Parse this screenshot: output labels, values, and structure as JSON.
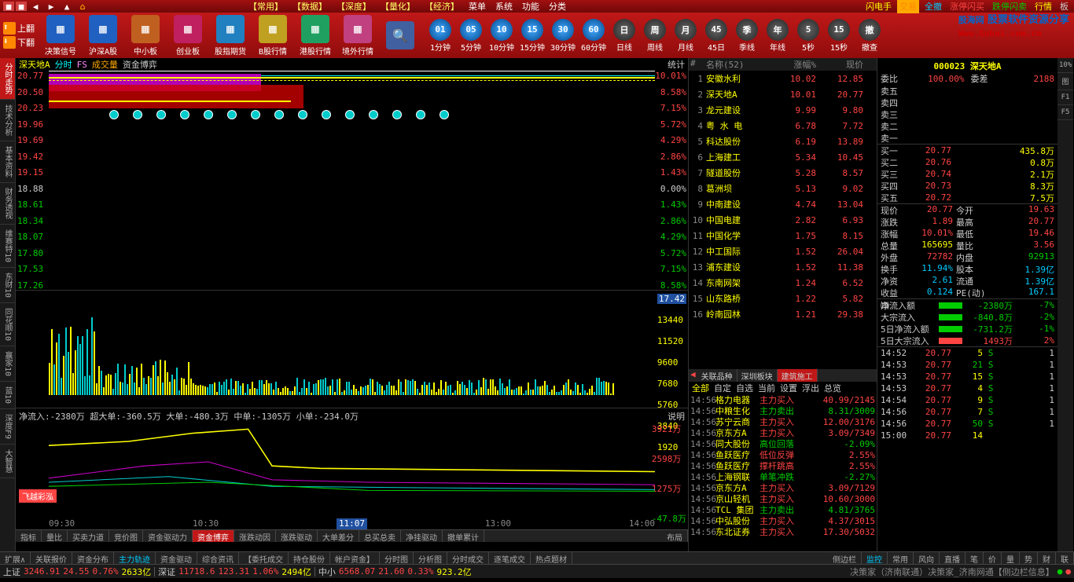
{
  "watermark": {
    "cn": "股海网",
    "sub": "股票软件资源分享",
    "url": "Www.Guhai.com.cn"
  },
  "topbar": {
    "menu": [
      "【常用】",
      "【数据】",
      "【深度】",
      "【量化】",
      "【经济】",
      "菜单",
      "系统",
      "功能",
      "分类"
    ],
    "right": [
      "闪电手",
      "交易",
      "全撤",
      "涨停闪买",
      "跌停闪卖",
      "行情",
      "板"
    ]
  },
  "leftScroll": {
    "up": "上翻",
    "down": "下翻"
  },
  "tools": [
    {
      "label": "决策信号",
      "c": "#2060c0"
    },
    {
      "label": "沪深A股",
      "c": "#2060c0"
    },
    {
      "label": "中小板",
      "c": "#c06020"
    },
    {
      "label": "创业板",
      "c": "#c02060"
    },
    {
      "label": "股指期货",
      "c": "#2080c0"
    },
    {
      "label": "B股行情",
      "c": "#c0a020"
    },
    {
      "label": "港股行情",
      "c": "#20a060"
    },
    {
      "label": "境外行情",
      "c": "#c04080"
    }
  ],
  "search": {
    "c": "#4060a0"
  },
  "timeframes": [
    {
      "t": "01",
      "l": "1分钟"
    },
    {
      "t": "05",
      "l": "5分钟"
    },
    {
      "t": "10",
      "l": "10分钟"
    },
    {
      "t": "15",
      "l": "15分钟"
    },
    {
      "t": "30",
      "l": "30分钟"
    },
    {
      "t": "60",
      "l": "60分钟"
    },
    {
      "t": "日",
      "l": "日线",
      "d": 1
    },
    {
      "t": "周",
      "l": "周线",
      "d": 1
    },
    {
      "t": "月",
      "l": "月线",
      "d": 1
    },
    {
      "t": "45",
      "l": "45日",
      "d": 1
    },
    {
      "t": "季",
      "l": "季线",
      "d": 1
    },
    {
      "t": "年",
      "l": "年线",
      "d": 1
    },
    {
      "t": "5",
      "l": "5秒",
      "d": 1
    },
    {
      "t": "15",
      "l": "15秒",
      "d": 1
    },
    {
      "t": "撤",
      "l": "撤查",
      "d": 1
    }
  ],
  "leftTabs": [
    "分时走势",
    "技术分析",
    "基本资料",
    "财务透视",
    "维赛特10",
    "东财10",
    "同花顺10",
    "赢家10",
    "蓝10",
    "深度F9",
    "大智慧"
  ],
  "chartHeader": {
    "code": "深天地A",
    "tf": "分时",
    "fs": "FS",
    "voltxt": "成交量",
    "flowtxt": "资金博弈",
    "stat": "统计"
  },
  "priceAxis": {
    "left": [
      "20.77",
      "20.50",
      "20.23",
      "19.96",
      "19.69",
      "19.42",
      "19.15",
      "18.88",
      "18.61",
      "18.34",
      "18.07",
      "17.80",
      "17.53",
      "17.26"
    ],
    "leftColors": [
      "#f44",
      "#f44",
      "#f44",
      "#f44",
      "#f44",
      "#f44",
      "#f44",
      "#ccc",
      "#0c0",
      "#0c0",
      "#0c0",
      "#0c0",
      "#0c0",
      "#0c0"
    ],
    "right": [
      "10.01%",
      "8.58%",
      "7.15%",
      "5.72%",
      "4.29%",
      "2.86%",
      "1.43%",
      "0.00%",
      "1.43%",
      "2.86%",
      "4.29%",
      "5.72%",
      "7.15%",
      "8.58%"
    ],
    "rightColors": [
      "#f44",
      "#f44",
      "#f44",
      "#f44",
      "#f44",
      "#f44",
      "#f44",
      "#ccc",
      "#0c0",
      "#0c0",
      "#0c0",
      "#0c0",
      "#0c0",
      "#0c0"
    ]
  },
  "volAxis": [
    "17.42",
    "13440",
    "11520",
    "9600",
    "7680",
    "5760",
    "3840",
    "1920"
  ],
  "volColors": [
    "#fff",
    "#ff0",
    "#ff0",
    "#ff0",
    "#ff0",
    "#ff0",
    "#ff0",
    "#ff0"
  ],
  "flowHdr": "净流入:-2380万 超大单:-360.5万  大单:-480.3万 中单:-1305万  小单:-234.0万",
  "flowHdrR": "说明",
  "flowAxis": [
    "3921万",
    "2598万",
    "1275万",
    "-47.8万"
  ],
  "flowColors": [
    "#f44",
    "#f44",
    "#f44",
    "#0c0"
  ],
  "xaxis": [
    "09:30",
    "10:30",
    "11:07",
    "13:00",
    "14:00"
  ],
  "chartTabs": [
    "指标",
    "量比",
    "买卖力道",
    "竞价图",
    "资金驱动力",
    "资金博弈",
    "涨跌动因",
    "涨跌驱动",
    "大单差分",
    "总买总卖",
    "净挂驱动",
    "撤单累计"
  ],
  "chartTabR": "布局",
  "chartTabAc": 5,
  "midHeader": {
    "id": "#",
    "name": "名称(52)",
    "chg": "涨幅%",
    "price": "现价"
  },
  "stocks": [
    {
      "n": "安徽水利",
      "c": "10.02",
      "p": "12.85"
    },
    {
      "n": "深天地A",
      "c": "10.01",
      "p": "20.77",
      "hl": 0
    },
    {
      "n": "龙元建设",
      "c": "9.99",
      "p": "9.80"
    },
    {
      "n": "粤 水 电",
      "c": "6.78",
      "p": "7.72"
    },
    {
      "n": "科达股份",
      "c": "6.19",
      "p": "13.89"
    },
    {
      "n": "上海建工",
      "c": "5.34",
      "p": "10.45"
    },
    {
      "n": "隧道股份",
      "c": "5.28",
      "p": "8.57"
    },
    {
      "n": "葛洲坝",
      "c": "5.13",
      "p": "9.02"
    },
    {
      "n": "中南建设",
      "c": "4.74",
      "p": "13.04"
    },
    {
      "n": "中国电建",
      "c": "2.82",
      "p": "6.93"
    },
    {
      "n": "中国化学",
      "c": "1.75",
      "p": "8.15"
    },
    {
      "n": "中工国际",
      "c": "1.52",
      "p": "26.04"
    },
    {
      "n": "浦东建设",
      "c": "1.52",
      "p": "11.38"
    },
    {
      "n": "东南网架",
      "c": "1.24",
      "p": "6.52"
    },
    {
      "n": "山东路桥",
      "c": "1.22",
      "p": "5.82"
    },
    {
      "n": "岭南园林",
      "c": "1.21",
      "p": "29.38"
    }
  ],
  "relTabs": [
    "关联品种",
    "深圳板块",
    "建筑施工"
  ],
  "relTabAc": 2,
  "filterTabs": [
    "全部",
    "自定",
    "自选",
    "当前",
    "设置",
    "浮出",
    "总览"
  ],
  "trades": [
    {
      "t": "14:56",
      "n": "格力电器",
      "a": "主力买入",
      "v": "40.99/2145",
      "ca": "#f44",
      "cv": "#f44"
    },
    {
      "t": "14:56",
      "n": "中粮生化",
      "a": "主力卖出",
      "v": "8.31/3009",
      "ca": "#0c0",
      "cv": "#0c0"
    },
    {
      "t": "14:56",
      "n": "苏宁云商",
      "a": "主力买入",
      "v": "12.00/3176",
      "ca": "#f44",
      "cv": "#f44"
    },
    {
      "t": "14:56",
      "n": "京东方A",
      "a": "主力买入",
      "v": "3.09/7349",
      "ca": "#f44",
      "cv": "#f44"
    },
    {
      "t": "14:56",
      "n": "同大股份",
      "a": "高位回落",
      "v": "-2.09%",
      "ca": "#0c0",
      "cv": "#0c0"
    },
    {
      "t": "14:56",
      "n": "鱼跃医疗",
      "a": "低位反弹",
      "v": "2.55%",
      "ca": "#f44",
      "cv": "#f44"
    },
    {
      "t": "14:56",
      "n": "鱼跃医疗",
      "a": "撑杆跳高",
      "v": "2.55%",
      "ca": "#f44",
      "cv": "#f44"
    },
    {
      "t": "14:56",
      "n": "上海钢联",
      "a": "单笔冲跌",
      "v": "-2.27%",
      "ca": "#0c0",
      "cv": "#0c0"
    },
    {
      "t": "14:56",
      "n": "京东方A",
      "a": "主力买入",
      "v": "3.09/7129",
      "ca": "#f44",
      "cv": "#f44"
    },
    {
      "t": "14:56",
      "n": "京山轻机",
      "a": "主力买入",
      "v": "10.60/3000",
      "ca": "#f44",
      "cv": "#f44"
    },
    {
      "t": "14:56",
      "n": "TCL 集团",
      "a": "主力卖出",
      "v": "4.81/3765",
      "ca": "#0c0",
      "cv": "#0c0"
    },
    {
      "t": "14:56",
      "n": "中弘股份",
      "a": "主力买入",
      "v": "4.37/3015",
      "ca": "#f44",
      "cv": "#f44"
    },
    {
      "t": "14:56",
      "n": "东北证券",
      "a": "主力买入",
      "v": "17.30/5032",
      "ca": "#f44",
      "cv": "#f44"
    }
  ],
  "stockTitle": {
    "code": "000023",
    "name": "深天地A"
  },
  "ratio": {
    "l1": "委比",
    "v1": "100.00%",
    "l2": "委差",
    "v2": "2188",
    "c1": "#f44",
    "c2": "#f44"
  },
  "sells": [
    "卖五",
    "卖四",
    "卖三",
    "卖二",
    "卖一"
  ],
  "buys": [
    {
      "l": "买一",
      "p": "20.77",
      "v": "435.8万"
    },
    {
      "l": "买二",
      "p": "20.76",
      "v": "0.8万"
    },
    {
      "l": "买三",
      "p": "20.74",
      "v": "2.1万"
    },
    {
      "l": "买四",
      "p": "20.73",
      "v": "8.3万"
    },
    {
      "l": "买五",
      "p": "20.72",
      "v": "7.5万"
    }
  ],
  "info": [
    {
      "l1": "现价",
      "v1": "20.77",
      "c1": "#f44",
      "l2": "今开",
      "v2": "19.63",
      "c2": "#f44"
    },
    {
      "l1": "涨跌",
      "v1": "1.89",
      "c1": "#f44",
      "l2": "最高",
      "v2": "20.77",
      "c2": "#f44"
    },
    {
      "l1": "涨幅",
      "v1": "10.01%",
      "c1": "#f44",
      "l2": "最低",
      "v2": "19.46",
      "c2": "#f44"
    },
    {
      "l1": "总量",
      "v1": "165695",
      "c1": "#ff0",
      "l2": "量比",
      "v2": "3.56",
      "c2": "#f44"
    },
    {
      "l1": "外盘",
      "v1": "72782",
      "c1": "#f44",
      "l2": "内盘",
      "v2": "92913",
      "c2": "#0c0"
    },
    {
      "l1": "换手",
      "v1": "11.94%",
      "c1": "#0cf",
      "l2": "股本",
      "v2": "1.39亿",
      "c2": "#0cf"
    },
    {
      "l1": "净资",
      "v1": "2.61",
      "c1": "#0cf",
      "l2": "流通",
      "v2": "1.39亿",
      "c2": "#0cf"
    },
    {
      "l1": "收益㈣",
      "v1": "0.124",
      "c1": "#0cf",
      "l2": "PE(动)",
      "v2": "167.1",
      "c2": "#0cf"
    }
  ],
  "flowInfo": [
    {
      "l": "净流入额",
      "bc": "#0c0",
      "v": "-2380万",
      "p": "-7%",
      "vc": "#0c0",
      "pc": "#0c0"
    },
    {
      "l": "大宗流入",
      "bc": "#0c0",
      "v": "-840.8万",
      "p": "-2%",
      "vc": "#0c0",
      "pc": "#0c0"
    },
    {
      "l": "5日净流入额",
      "bc": "#0c0",
      "v": "-731.2万",
      "p": "-1%",
      "vc": "#0c0",
      "pc": "#0c0"
    },
    {
      "l": "5日大宗流入",
      "bc": "#f44",
      "v": "1493万",
      "p": "2%",
      "vc": "#f44",
      "pc": "#f44"
    }
  ],
  "ticks": [
    {
      "t": "14:52",
      "p": "20.77",
      "v": "5",
      "s": "S",
      "n": "1",
      "sc": "#0c0"
    },
    {
      "t": "14:53",
      "p": "20.77",
      "v": "21",
      "s": "S",
      "n": "1",
      "sc": "#0c0",
      "vc": "#0c0"
    },
    {
      "t": "14:53",
      "p": "20.77",
      "v": "15",
      "s": "S",
      "n": "1",
      "sc": "#0c0"
    },
    {
      "t": "14:53",
      "p": "20.77",
      "v": "4",
      "s": "S",
      "n": "1",
      "sc": "#0c0"
    },
    {
      "t": "14:54",
      "p": "20.77",
      "v": "9",
      "s": "S",
      "n": "1",
      "sc": "#0c0"
    },
    {
      "t": "14:56",
      "p": "20.77",
      "v": "7",
      "s": "S",
      "n": "1",
      "sc": "#0c0"
    },
    {
      "t": "14:56",
      "p": "20.77",
      "v": "50",
      "s": "S",
      "n": "1",
      "sc": "#0c0",
      "vc": "#0c0"
    },
    {
      "t": "15:00",
      "p": "20.77",
      "v": "14",
      "s": "",
      "n": "",
      "sc": ""
    }
  ],
  "rightTabs": [
    "10%",
    "图",
    "F1",
    "F5"
  ],
  "bottomTabs": [
    "扩展∧",
    "关联报价",
    "资金分布",
    "主力轨迹",
    "资金驱动",
    "综合资讯",
    "【委托成交",
    "持仓股份",
    "帐户资金】",
    "分时图",
    "分析图",
    "分时成交",
    "逐笔成交",
    "热点题材"
  ],
  "bottomR": [
    "侧边栏",
    "监控",
    "常用",
    "风向",
    "直播",
    "笔",
    "价",
    "量",
    "势",
    "财",
    "联"
  ],
  "status": {
    "sh": {
      "l": "上证",
      "v": "3246.91",
      "d": "24.55",
      "p": "0.76%",
      "vol": "2633亿"
    },
    "sz": {
      "l": "深证",
      "v": "11718.6",
      "d": "123.31",
      "p": "1.06%",
      "vol": "2494亿"
    },
    "zxb": {
      "l": "中小",
      "v": "6568.07",
      "d": "21.60",
      "p": "0.33%",
      "vol": "923.2亿"
    },
    "broker": "决策家（济南联通）决策家_济南网通【侧边栏信息】"
  },
  "flyLabel": "飞越彩泓"
}
